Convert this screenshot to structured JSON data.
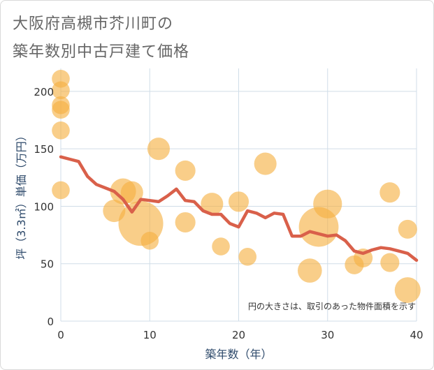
{
  "title_line1": "大阪府高槻市芥川町の",
  "title_line2": "築年数別中古戸建て価格",
  "chart_data": {
    "type": "scatter+line",
    "xlabel": "築年数（年）",
    "ylabel": "坪（3.3㎡）単価（万円）",
    "xlim": [
      0,
      40
    ],
    "ylim": [
      0,
      220
    ],
    "xticks": [
      0,
      10,
      20,
      30,
      40
    ],
    "yticks": [
      0,
      50,
      100,
      150,
      200
    ],
    "note": "円の大きさは、取引のあった物件面積を示す",
    "colors": {
      "bubble": "#f5b041",
      "line": "#d9604a",
      "grid": "#d0dde8"
    },
    "bubbles": [
      {
        "x": 0,
        "y": 211,
        "size": 1
      },
      {
        "x": 0,
        "y": 201,
        "size": 1
      },
      {
        "x": 0,
        "y": 188,
        "size": 1
      },
      {
        "x": 0,
        "y": 184,
        "size": 1
      },
      {
        "x": 0,
        "y": 166,
        "size": 1
      },
      {
        "x": 0,
        "y": 114,
        "size": 1
      },
      {
        "x": 6,
        "y": 96,
        "size": 2
      },
      {
        "x": 7,
        "y": 113,
        "size": 3
      },
      {
        "x": 8,
        "y": 112,
        "size": 2
      },
      {
        "x": 9,
        "y": 85,
        "size": 12
      },
      {
        "x": 10,
        "y": 70,
        "size": 1
      },
      {
        "x": 11,
        "y": 150,
        "size": 2
      },
      {
        "x": 14,
        "y": 131,
        "size": 1.5
      },
      {
        "x": 14,
        "y": 86,
        "size": 1.5
      },
      {
        "x": 17,
        "y": 102,
        "size": 2
      },
      {
        "x": 18,
        "y": 65,
        "size": 1
      },
      {
        "x": 20,
        "y": 104,
        "size": 1.5
      },
      {
        "x": 21,
        "y": 56,
        "size": 1
      },
      {
        "x": 23,
        "y": 137,
        "size": 2
      },
      {
        "x": 28,
        "y": 44,
        "size": 2.5
      },
      {
        "x": 29,
        "y": 82,
        "size": 9
      },
      {
        "x": 30,
        "y": 102,
        "size": 4
      },
      {
        "x": 33,
        "y": 49,
        "size": 1.2
      },
      {
        "x": 34,
        "y": 55,
        "size": 1.2
      },
      {
        "x": 37,
        "y": 112,
        "size": 1.5
      },
      {
        "x": 37,
        "y": 51,
        "size": 1.2
      },
      {
        "x": 39,
        "y": 80,
        "size": 1.2
      },
      {
        "x": 39,
        "y": 27,
        "size": 3
      }
    ],
    "line": {
      "x": [
        0,
        1,
        2,
        3,
        4,
        5,
        6,
        7,
        8,
        9,
        10,
        11,
        12,
        13,
        14,
        15,
        16,
        17,
        18,
        19,
        20,
        21,
        22,
        23,
        24,
        25,
        26,
        27,
        28,
        29,
        30,
        31,
        32,
        33,
        34,
        35,
        36,
        37,
        38,
        39,
        40
      ],
      "y": [
        143,
        141,
        139,
        126,
        119,
        116,
        113,
        106,
        95,
        106,
        105,
        104,
        109,
        115,
        105,
        104,
        96,
        93,
        93,
        85,
        82,
        96,
        94,
        90,
        94,
        93,
        74,
        74,
        78,
        76,
        74,
        75,
        70,
        61,
        59,
        62,
        64,
        63,
        61,
        59,
        53
      ]
    }
  }
}
